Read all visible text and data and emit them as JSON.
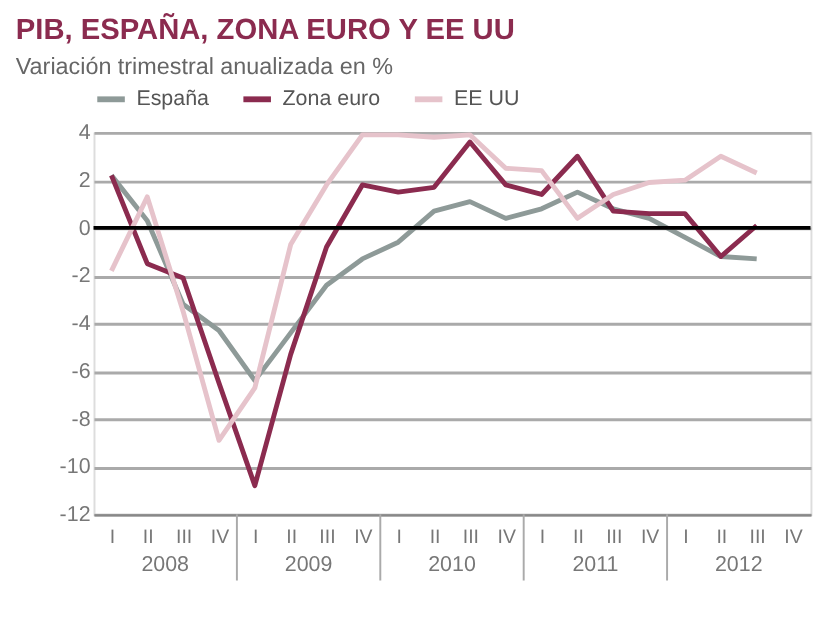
{
  "chart_data": {
    "type": "line",
    "title": "PIB, ESPAÑA, ZONA EURO Y EE UU",
    "subtitle": "Variación trimestral anualizada en %",
    "categories": [
      "I",
      "II",
      "III",
      "IV",
      "I",
      "II",
      "III",
      "IV",
      "I",
      "II",
      "III",
      "IV",
      "I",
      "II",
      "III",
      "IV",
      "I",
      "II",
      "III",
      "IV"
    ],
    "annotations": [
      "2008",
      "2009",
      "2010",
      "2011",
      "2012"
    ],
    "series": [
      {
        "name": "España",
        "color": "#8e9a98",
        "values": [
          2.2,
          0.3,
          -3.2,
          -4.3,
          -6.4,
          -4.4,
          -2.4,
          -1.3,
          -0.6,
          0.7,
          1.1,
          0.4,
          0.8,
          1.5,
          0.8,
          0.4,
          -0.4,
          -1.2,
          -1.3,
          null
        ]
      },
      {
        "name": "Zona euro",
        "color": "#8b2b4f",
        "values": [
          2.2,
          -1.5,
          -2.1,
          -6.5,
          -10.8,
          -5.3,
          -0.8,
          1.8,
          1.5,
          1.7,
          3.6,
          1.8,
          1.4,
          3.0,
          0.7,
          0.6,
          0.6,
          -1.2,
          0.1,
          null
        ]
      },
      {
        "name": "EE UU",
        "color": "#e6c3cb",
        "values": [
          -1.8,
          1.3,
          -3.5,
          -8.9,
          -6.7,
          -0.7,
          1.8,
          3.9,
          3.9,
          3.8,
          3.9,
          2.5,
          2.4,
          0.4,
          1.4,
          1.9,
          2.0,
          3.0,
          2.3,
          null
        ]
      }
    ],
    "ylim": [
      -12,
      4
    ],
    "yticks": [
      -12,
      -10,
      -8,
      -6,
      -4,
      -2,
      0,
      2,
      4
    ],
    "grid": "y",
    "legend": "top left",
    "ref_lines": [
      {
        "axis": "y",
        "value": 0,
        "color": "#000000"
      }
    ]
  }
}
